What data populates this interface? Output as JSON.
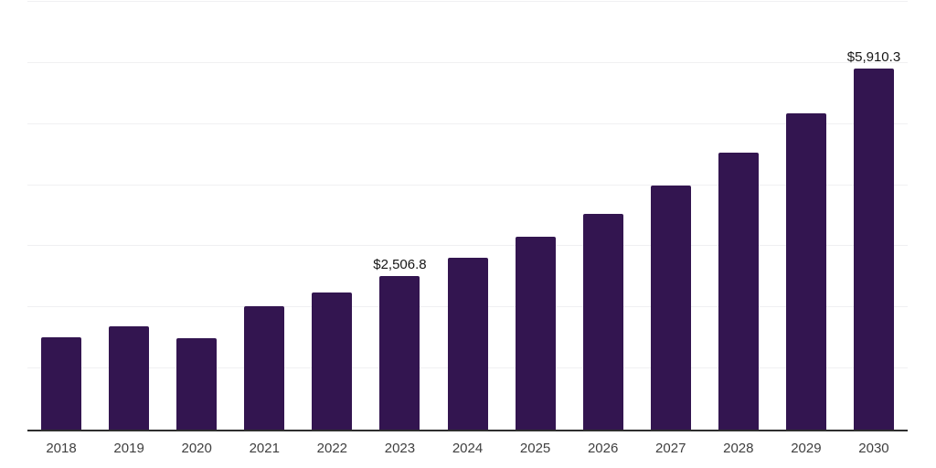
{
  "chart_data": {
    "type": "bar",
    "title": "",
    "xlabel": "",
    "ylabel": "",
    "categories": [
      "2018",
      "2019",
      "2020",
      "2021",
      "2022",
      "2023",
      "2024",
      "2025",
      "2026",
      "2027",
      "2028",
      "2029",
      "2030"
    ],
    "values": [
      1505,
      1685,
      1495,
      2015,
      2245,
      2506.8,
      2805,
      3150,
      3530,
      3990,
      4530,
      5180,
      5910.3
    ],
    "point_labels": [
      "",
      "",
      "",
      "",
      "",
      "$2,506.8",
      "",
      "",
      "",
      "",
      "",
      "",
      "$5,910.3"
    ],
    "ylim": [
      0,
      7000
    ],
    "gridline_step": 1000,
    "grid": "horizontal",
    "legend": "none",
    "y_tick_labels_visible": false
  },
  "colors": {
    "bar": "#331550",
    "gridline": "#f0f0f2",
    "axis": "#2e2e2e",
    "tick_label": "#3f3f3f",
    "value_label": "#161616",
    "background": "#ffffff"
  }
}
